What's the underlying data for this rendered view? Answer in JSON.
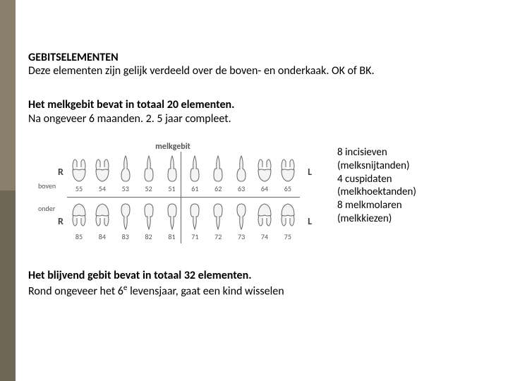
{
  "colors": {
    "sidebar_top": "#8a7f6a",
    "sidebar_bottom": "#6e6756",
    "background": "#ffffff",
    "text": "#000000",
    "diagram_line": "#666666",
    "diagram_text": "#555555"
  },
  "heading": "GEBITSELEMENTEN",
  "intro": "Deze elementen zijn gelijk verdeeld over de boven- en onderkaak. OK of BK.",
  "milk_title": "Het melkgebit bevat in totaal 20 elementen.",
  "milk_sub": "Na ongeveer 6 maanden. 2. 5 jaar compleet.",
  "legend": {
    "l1": "8 incisieven",
    "l2": "(melksnijtanden)",
    "l3": "4 cuspidaten",
    "l4": "(melkhoektanden)",
    "l5": "8 melkmolaren",
    "l6": "(melkkiezen)"
  },
  "diagram": {
    "title": "melkgebit",
    "boven_label": "boven",
    "onder_label": "onder",
    "R": "R",
    "L": "L",
    "upper_numbers": [
      "55",
      "54",
      "53",
      "52",
      "51",
      "61",
      "62",
      "63",
      "64",
      "65"
    ],
    "lower_numbers": [
      "85",
      "84",
      "83",
      "82",
      "81",
      "71",
      "72",
      "73",
      "74",
      "75"
    ],
    "tooth_types_upper": [
      "molar",
      "molar",
      "canine",
      "incisor",
      "incisor",
      "incisor",
      "incisor",
      "canine",
      "molar",
      "molar"
    ],
    "tooth_types_lower": [
      "molar",
      "molar",
      "canine",
      "incisor",
      "incisor",
      "incisor",
      "incisor",
      "canine",
      "molar",
      "molar"
    ]
  },
  "perm_title": "Het blijvend gebit bevat in totaal 32 elementen.",
  "perm_sub_a": "Rond ongeveer het 6",
  "perm_sub_sup": "e",
  "perm_sub_b": " levensjaar, gaat een kind wisselen"
}
